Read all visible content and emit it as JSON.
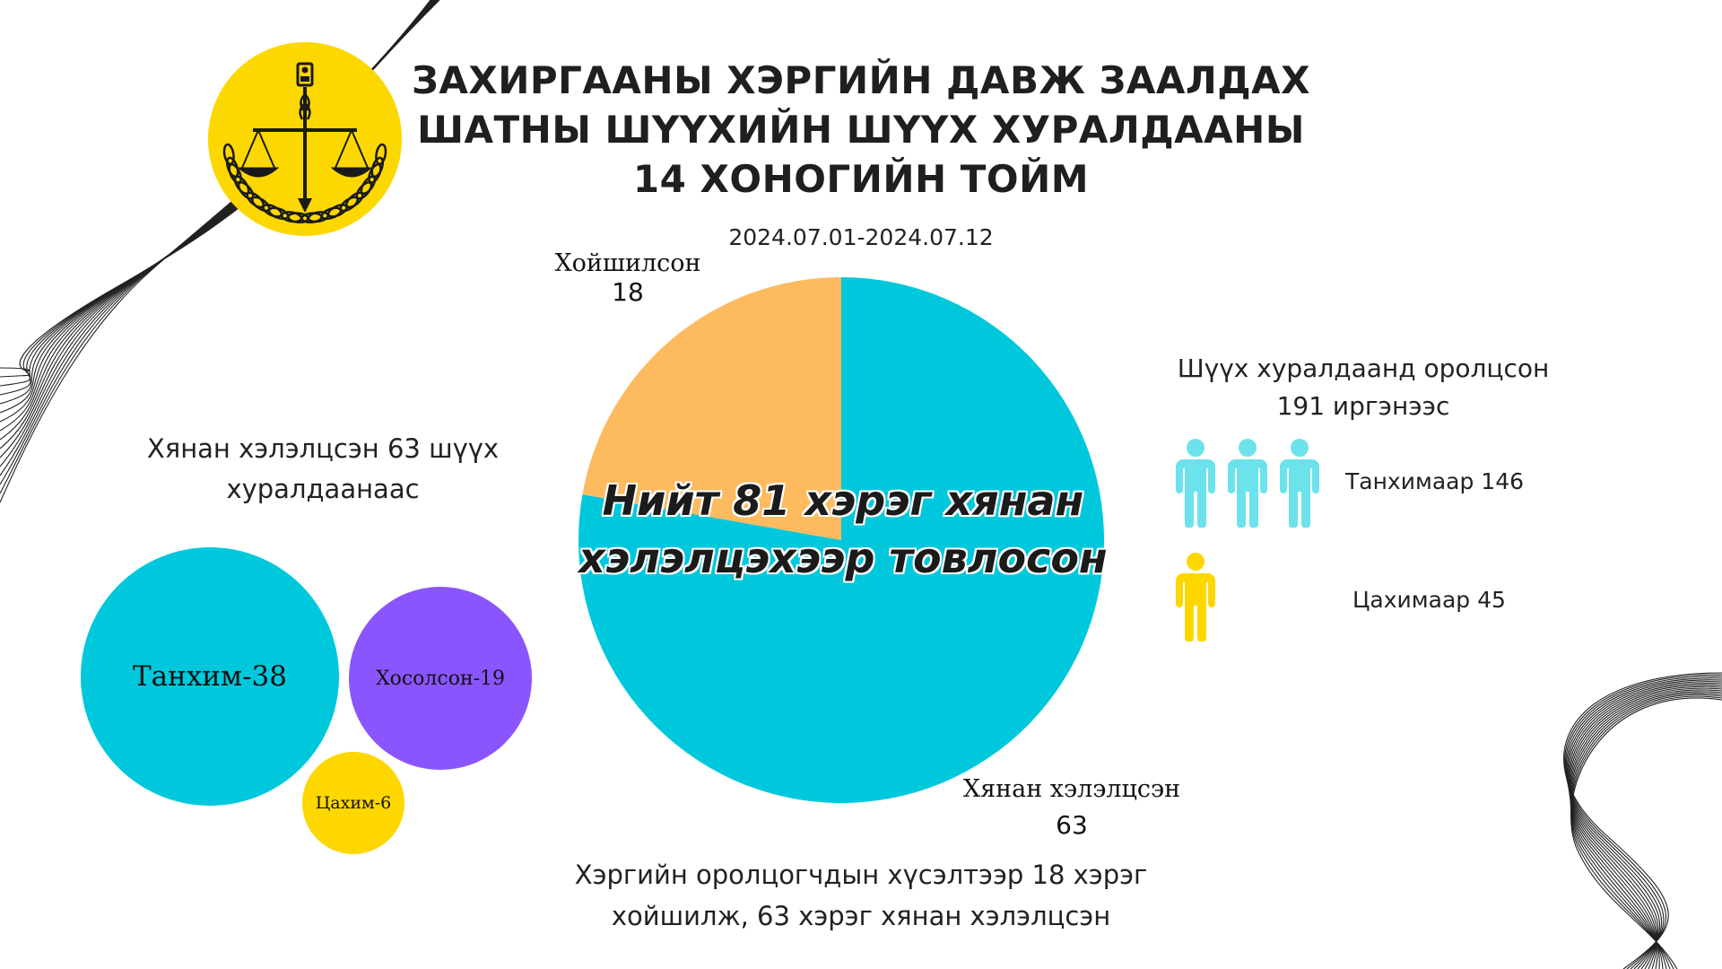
{
  "title_lines": [
    "ЗАХИРГААНЫ ХЭРГИЙН ДАВЖ ЗААЛДАХ",
    "ШАТНЫ ШҮҮХИЙН ШҮҮХ ХУРАЛДААНЫ",
    "14 ХОНОГИЙН ТОЙМ"
  ],
  "date_range": "2024.07.01-2024.07.12",
  "colors": {
    "cyan": "#00C8DC",
    "orange": "#FDBA5F",
    "purple": "#8A55FD",
    "yellow": "#FFD700",
    "light_cyan": "#6CE2EC",
    "emblem_gold": "#FDD700"
  },
  "emblem": {
    "icon": "court-emblem-scales-icon"
  },
  "chart_data": [
    {
      "type": "pie",
      "title": "",
      "slices": [
        {
          "label": "Хянан хэлэлцсэн",
          "value": 63,
          "color": "#00C8DC"
        },
        {
          "label": "Хойшилсон",
          "value": 18,
          "color": "#FDBA5F"
        }
      ],
      "center_text": [
        "Нийт 81 хэрэг хянан",
        "хэлэлцэхээр товлосон"
      ]
    },
    {
      "type": "bubble",
      "title": "",
      "items": [
        {
          "label": "Танхим-38",
          "value": 38,
          "color": "#00C8DC"
        },
        {
          "label": "Хосолсон-19",
          "value": 19,
          "color": "#8A55FD"
        },
        {
          "label": "Цахим-6",
          "value": 6,
          "color": "#FFD700"
        }
      ]
    },
    {
      "type": "pictograph",
      "title": "",
      "rows": [
        {
          "label": "Танхимаар 146",
          "value": 146,
          "icons": 3,
          "color": "#6CE2EC"
        },
        {
          "label": "Цахимаар 45",
          "value": 45,
          "icons": 1,
          "color": "#FFD700"
        }
      ]
    }
  ],
  "left_caption_lines": [
    "Хянан хэлэлцсэн 63 шүүх",
    "хуралдаанаас"
  ],
  "right_caption_lines": [
    "Шүүх хуралдаанд оролцсон",
    "191 иргэнээс"
  ],
  "bottom_caption_lines": [
    "Хэргийн оролцогчдын хүсэлтээр 18 хэрэг",
    "хойшилж, 63 хэрэг хянан хэлэлцсэн"
  ]
}
